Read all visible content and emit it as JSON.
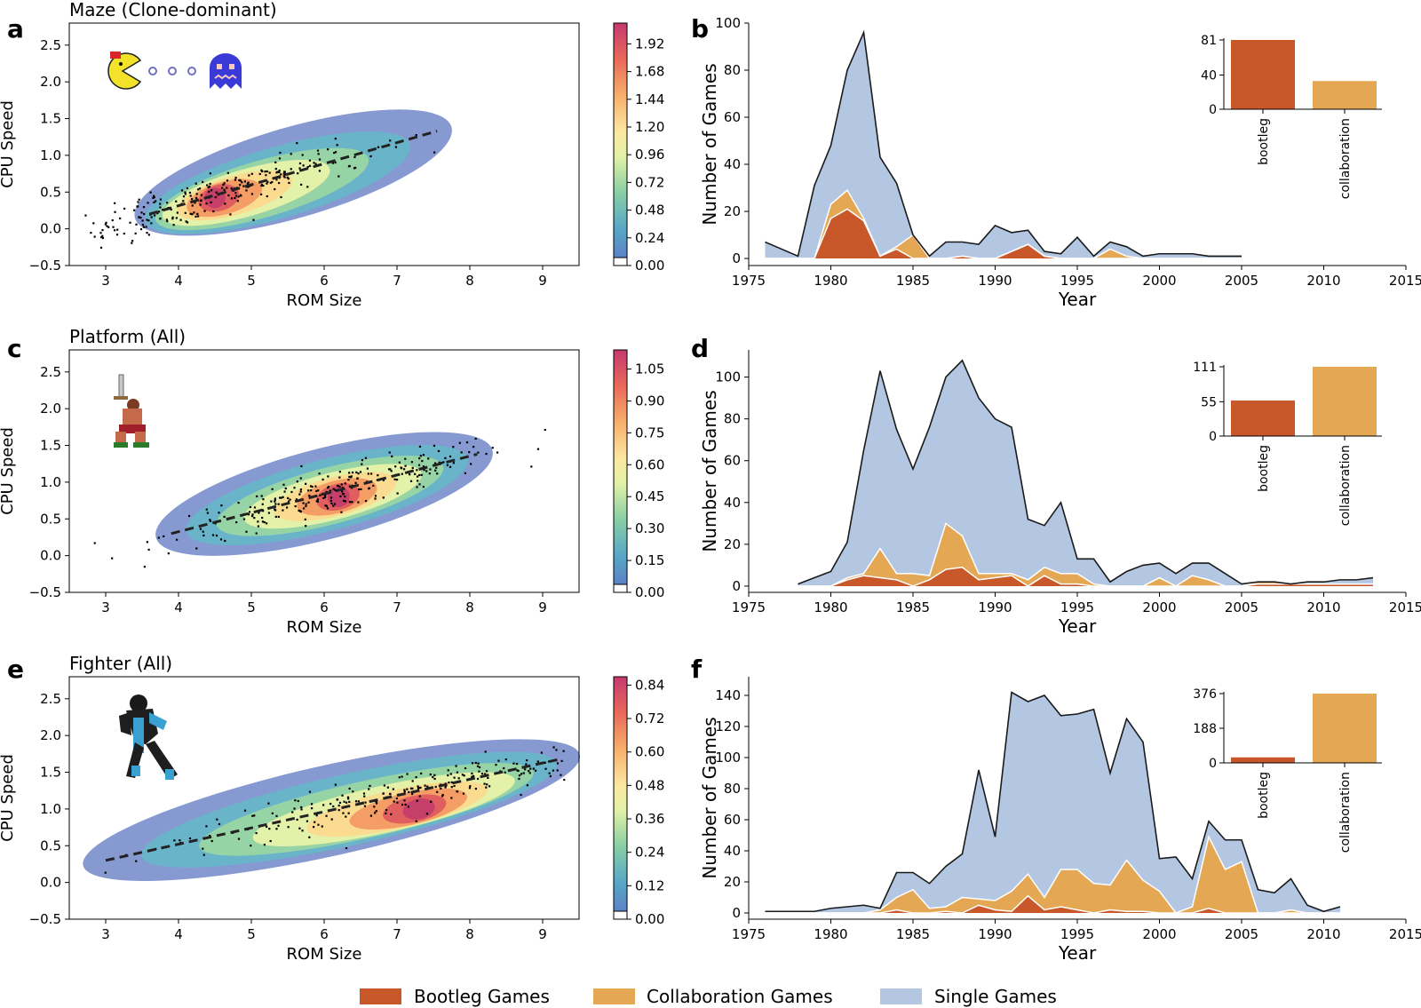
{
  "panel_letters": [
    "a",
    "b",
    "c",
    "d",
    "e",
    "f"
  ],
  "legend": [
    {
      "label": "Bootleg Games",
      "color": "#c8582a"
    },
    {
      "label": "Collaboration Games",
      "color": "#e4a855"
    },
    {
      "label": "Single Games",
      "color": "#b3c7e3"
    }
  ],
  "chart_data": [
    {
      "type": "scatter",
      "title": "Maze (Clone-dominant)",
      "xlabel": "ROM Size",
      "ylabel": "CPU Speed",
      "xlim": [
        2.5,
        9.5
      ],
      "ylim": [
        -0.5,
        2.8
      ],
      "xticks": [
        3,
        4,
        5,
        6,
        7,
        8,
        9
      ],
      "xtick_labels": [
        "3",
        "4",
        "5",
        "6",
        "7",
        "8",
        "9"
      ],
      "yticks": [
        -0.5,
        0,
        0.5,
        1,
        1.5,
        2,
        2.5
      ],
      "ytick_labels": [
        "−0.5",
        "0.0",
        "0.5",
        "1.0",
        "1.5",
        "2.0",
        "2.5"
      ],
      "trend": {
        "x": [
          3.6,
          7.55
        ],
        "y": [
          0.2,
          1.33
        ]
      },
      "density_peak": {
        "x": 4.5,
        "y": 0.42
      },
      "colorbar": {
        "max": 2.1,
        "ticks": [
          "0.00",
          "0.24",
          "0.48",
          "0.72",
          "0.96",
          "1.20",
          "1.44",
          "1.68",
          "1.92"
        ]
      }
    },
    {
      "type": "area",
      "title": "",
      "xlabel": "Year",
      "ylabel": "Number of Games",
      "xlim": [
        1975,
        2015
      ],
      "ylim": [
        -3,
        100
      ],
      "xticks": [
        1975,
        1980,
        1985,
        1990,
        1995,
        2000,
        2005,
        2010,
        2015
      ],
      "xtick_labels": [
        "1975",
        "1980",
        "1985",
        "1990",
        "1995",
        "2000",
        "2005",
        "2010",
        "2015"
      ],
      "yticks": [
        0,
        20,
        40,
        60,
        80,
        100
      ],
      "ytick_labels": [
        "0",
        "20",
        "40",
        "60",
        "80",
        "100"
      ],
      "x": [
        1976,
        1977,
        1978,
        1979,
        1980,
        1981,
        1982,
        1983,
        1984,
        1985,
        1986,
        1987,
        1988,
        1989,
        1990,
        1991,
        1992,
        1993,
        1994,
        1995,
        1996,
        1997,
        1998,
        1999,
        2000,
        2001,
        2002,
        2003,
        2004,
        2005
      ],
      "series": [
        {
          "name": "Bootleg Games",
          "values": [
            0,
            0,
            0,
            0,
            17,
            21,
            16,
            1,
            4,
            0,
            0,
            0,
            1,
            0,
            0,
            3,
            6,
            1,
            0,
            0,
            0,
            0,
            0,
            0,
            0,
            0,
            0,
            0,
            0,
            0
          ]
        },
        {
          "name": "Collaboration Games",
          "values": [
            0,
            0,
            0,
            0,
            6,
            8,
            1,
            0,
            1,
            10,
            0,
            0,
            0,
            0,
            0,
            0,
            0,
            0,
            0,
            0,
            0,
            4,
            1,
            0,
            0,
            0,
            0,
            0,
            0,
            0
          ]
        },
        {
          "name": "Single Games",
          "values": [
            7,
            4,
            1,
            31,
            25,
            51,
            79,
            42,
            27,
            0,
            1,
            7,
            6,
            6,
            14,
            8,
            6,
            2,
            2,
            9,
            1,
            3,
            4,
            1,
            2,
            2,
            2,
            1,
            1,
            1
          ]
        }
      ],
      "total": [
        7,
        4,
        1,
        31,
        48,
        80,
        96,
        43,
        32,
        10,
        1,
        7,
        7,
        6,
        14,
        11,
        12,
        3,
        2,
        9,
        1,
        7,
        5,
        1,
        2,
        2,
        2,
        1,
        1,
        1
      ],
      "inset": {
        "type": "bar",
        "categories": [
          "bootleg",
          "collaboration"
        ],
        "values": [
          81,
          33
        ],
        "yticks": [
          0,
          40,
          81
        ],
        "ytick_labels": [
          "0",
          "40",
          "81"
        ],
        "ymax": 81
      }
    },
    {
      "type": "scatter",
      "title": "Platform (All)",
      "xlabel": "ROM Size",
      "ylabel": "CPU Speed",
      "xlim": [
        2.5,
        9.5
      ],
      "ylim": [
        -0.5,
        2.8
      ],
      "xticks": [
        3,
        4,
        5,
        6,
        7,
        8,
        9
      ],
      "xtick_labels": [
        "3",
        "4",
        "5",
        "6",
        "7",
        "8",
        "9"
      ],
      "yticks": [
        -0.5,
        0,
        0.5,
        1,
        1.5,
        2,
        2.5
      ],
      "ytick_labels": [
        "−0.5",
        "0.0",
        "0.5",
        "1.0",
        "1.5",
        "2.0",
        "2.5"
      ],
      "trend": {
        "x": [
          3.9,
          8.1
        ],
        "y": [
          0.3,
          1.38
        ]
      },
      "density_peak": {
        "x": 6.2,
        "y": 0.8
      },
      "colorbar": {
        "max": 1.14,
        "ticks": [
          "0.00",
          "0.15",
          "0.30",
          "0.45",
          "0.60",
          "0.75",
          "0.90",
          "1.05"
        ]
      }
    },
    {
      "type": "area",
      "title": "",
      "xlabel": "Year",
      "ylabel": "Number of Games",
      "xlim": [
        1975,
        2015
      ],
      "ylim": [
        -3,
        113
      ],
      "xticks": [
        1975,
        1980,
        1985,
        1990,
        1995,
        2000,
        2005,
        2010,
        2015
      ],
      "xtick_labels": [
        "1975",
        "1980",
        "1985",
        "1990",
        "1995",
        "2000",
        "2005",
        "2010",
        "2015"
      ],
      "yticks": [
        0,
        20,
        40,
        60,
        80,
        100
      ],
      "ytick_labels": [
        "0",
        "20",
        "40",
        "60",
        "80",
        "100"
      ],
      "x": [
        1978,
        1979,
        1980,
        1981,
        1982,
        1983,
        1984,
        1985,
        1986,
        1987,
        1988,
        1989,
        1990,
        1991,
        1992,
        1993,
        1994,
        1995,
        1996,
        1997,
        1998,
        1999,
        2000,
        2001,
        2002,
        2003,
        2004,
        2005,
        2006,
        2007,
        2008,
        2009,
        2010,
        2011,
        2012,
        2013
      ],
      "series": [
        {
          "name": "Bootleg Games",
          "values": [
            0,
            0,
            0,
            3,
            5,
            4,
            3,
            0,
            3,
            8,
            9,
            3,
            4,
            5,
            0,
            5,
            1,
            1,
            0,
            0,
            0,
            0,
            0,
            0,
            0,
            0,
            0,
            0,
            1,
            1,
            1,
            1,
            1,
            1,
            1,
            1
          ]
        },
        {
          "name": "Collaboration Games",
          "values": [
            0,
            0,
            0,
            1,
            1,
            14,
            3,
            6,
            2,
            22,
            15,
            3,
            2,
            1,
            3,
            4,
            5,
            5,
            1,
            0,
            0,
            0,
            4,
            0,
            5,
            3,
            0,
            0,
            1,
            1,
            0,
            0,
            0,
            0,
            0,
            0
          ]
        },
        {
          "name": "Single Games",
          "values": [
            1,
            4,
            7,
            17,
            59,
            85,
            69,
            50,
            71,
            70,
            84,
            84,
            74,
            70,
            29,
            20,
            34,
            7,
            12,
            2,
            7,
            10,
            7,
            6,
            6,
            8,
            6,
            1,
            0,
            0,
            0,
            1,
            1,
            2,
            2,
            3
          ]
        }
      ],
      "total": [
        1,
        4,
        7,
        21,
        65,
        103,
        75,
        56,
        76,
        100,
        108,
        90,
        80,
        76,
        32,
        29,
        40,
        13,
        13,
        2,
        7,
        10,
        11,
        6,
        11,
        11,
        6,
        1,
        2,
        2,
        1,
        2,
        2,
        3,
        3,
        4
      ],
      "inset": {
        "type": "bar",
        "categories": [
          "bootleg",
          "collaboration"
        ],
        "values": [
          57,
          111
        ],
        "yticks": [
          0,
          55,
          111
        ],
        "ytick_labels": [
          "0",
          "55",
          "111"
        ],
        "ymax": 111
      }
    },
    {
      "type": "scatter",
      "title": "Fighter (All)",
      "xlabel": "ROM Size",
      "ylabel": "CPU Speed",
      "xlim": [
        2.5,
        9.5
      ],
      "ylim": [
        -0.5,
        2.8
      ],
      "xticks": [
        3,
        4,
        5,
        6,
        7,
        8,
        9
      ],
      "xtick_labels": [
        "3",
        "4",
        "5",
        "6",
        "7",
        "8",
        "9"
      ],
      "yticks": [
        -0.5,
        0,
        0.5,
        1,
        1.5,
        2,
        2.5
      ],
      "ytick_labels": [
        "−0.5",
        "0.0",
        "0.5",
        "1.0",
        "1.5",
        "2.0",
        "2.5"
      ],
      "trend": {
        "x": [
          3.0,
          9.2
        ],
        "y": [
          0.3,
          1.67
        ]
      },
      "density_peak": {
        "x": 7.3,
        "y": 1.0
      },
      "colorbar": {
        "max": 0.87,
        "ticks": [
          "0.00",
          "0.12",
          "0.24",
          "0.36",
          "0.48",
          "0.60",
          "0.72",
          "0.84"
        ]
      }
    },
    {
      "type": "area",
      "title": "",
      "xlabel": "Year",
      "ylabel": "Number of Games",
      "xlim": [
        1975,
        2015
      ],
      "ylim": [
        -4,
        152
      ],
      "xticks": [
        1975,
        1980,
        1985,
        1990,
        1995,
        2000,
        2005,
        2010,
        2015
      ],
      "xtick_labels": [
        "1975",
        "1980",
        "1985",
        "1990",
        "1995",
        "2000",
        "2005",
        "2010",
        "2015"
      ],
      "yticks": [
        0,
        20,
        40,
        60,
        80,
        100,
        120,
        140
      ],
      "ytick_labels": [
        "0",
        "20",
        "40",
        "60",
        "80",
        "100",
        "120",
        "140"
      ],
      "x": [
        1976,
        1977,
        1978,
        1979,
        1980,
        1981,
        1982,
        1983,
        1984,
        1985,
        1986,
        1987,
        1988,
        1989,
        1990,
        1991,
        1992,
        1993,
        1994,
        1995,
        1996,
        1997,
        1998,
        1999,
        2000,
        2001,
        2002,
        2003,
        2004,
        2005,
        2006,
        2007,
        2008,
        2009,
        2010,
        2011
      ],
      "series": [
        {
          "name": "Bootleg Games",
          "values": [
            0,
            0,
            0,
            0,
            0,
            0,
            0,
            0,
            2,
            0,
            0,
            1,
            0,
            5,
            2,
            1,
            11,
            2,
            4,
            2,
            0,
            2,
            1,
            1,
            0,
            0,
            0,
            3,
            0,
            0,
            0,
            0,
            0,
            0,
            0,
            0
          ]
        },
        {
          "name": "Collaboration Games",
          "values": [
            0,
            0,
            0,
            0,
            0,
            0,
            0,
            2,
            8,
            15,
            3,
            3,
            10,
            4,
            6,
            13,
            14,
            8,
            24,
            26,
            19,
            16,
            33,
            20,
            14,
            0,
            4,
            46,
            28,
            33,
            0,
            0,
            2,
            0,
            0,
            0
          ]
        },
        {
          "name": "Single Games",
          "values": [
            1,
            1,
            1,
            1,
            3,
            4,
            5,
            1,
            16,
            11,
            16,
            26,
            28,
            83,
            41,
            128,
            111,
            130,
            99,
            100,
            112,
            72,
            91,
            89,
            21,
            36,
            18,
            10,
            19,
            14,
            15,
            13,
            20,
            5,
            1,
            4
          ]
        }
      ],
      "total": [
        1,
        1,
        1,
        1,
        3,
        4,
        5,
        3,
        26,
        26,
        19,
        30,
        38,
        92,
        49,
        142,
        136,
        140,
        127,
        128,
        131,
        90,
        125,
        110,
        35,
        36,
        22,
        59,
        47,
        47,
        15,
        13,
        22,
        5,
        1,
        4
      ],
      "inset": {
        "type": "bar",
        "categories": [
          "bootleg",
          "collaboration"
        ],
        "values": [
          30,
          376
        ],
        "yticks": [
          0,
          188,
          376
        ],
        "ytick_labels": [
          "0",
          "188",
          "376"
        ],
        "ymax": 376
      }
    }
  ]
}
